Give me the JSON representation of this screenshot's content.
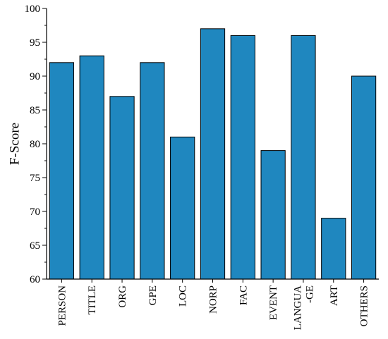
{
  "chart_data": {
    "type": "bar",
    "title": "",
    "xlabel": "",
    "ylabel": "F-Score",
    "categories": [
      "PERSON",
      "TITLE",
      "ORG",
      "GPE",
      "LOC",
      "NORP",
      "FAC",
      "EVENT",
      "LANGUA\n-GE",
      "ART",
      "OTHERS"
    ],
    "values": [
      92,
      93,
      87,
      92,
      81,
      97,
      96,
      79,
      96,
      69,
      90
    ],
    "ylim": [
      60,
      100
    ],
    "yticks": [
      60,
      65,
      70,
      75,
      80,
      85,
      90,
      95,
      100
    ],
    "grid": false,
    "legend": "none",
    "colors": {
      "bar_fill": "#1f87bf",
      "bar_stroke": "#000000",
      "axis": "#000000",
      "text": "#000000"
    }
  }
}
